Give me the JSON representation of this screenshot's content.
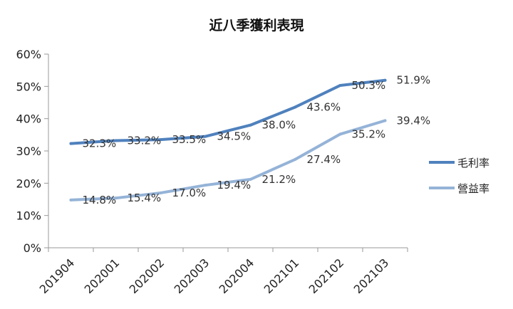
{
  "chart_data": {
    "type": "line",
    "title": "近八季獲利表現",
    "categories": [
      "201904",
      "202001",
      "202002",
      "202003",
      "202004",
      "202101",
      "202102",
      "202103"
    ],
    "series": [
      {
        "name": "毛利率",
        "color": "#4F81BD",
        "values": [
          32.3,
          33.2,
          33.5,
          34.5,
          38.0,
          43.6,
          50.3,
          51.9
        ],
        "labels": [
          "32.3%",
          "33.2%",
          "33.5%",
          "34.5%",
          "38.0%",
          "43.6%",
          "50.3%",
          "51.9%"
        ]
      },
      {
        "name": "營益率",
        "color": "#95B3D7",
        "values": [
          14.8,
          15.4,
          17.0,
          19.4,
          21.2,
          27.4,
          35.2,
          39.4
        ],
        "labels": [
          "14.8%",
          "15.4%",
          "17.0%",
          "19.4%",
          "21.2%",
          "27.4%",
          "35.2%",
          "39.4%"
        ]
      }
    ],
    "y_ticks": [
      "0%",
      "10%",
      "20%",
      "30%",
      "40%",
      "50%",
      "60%"
    ],
    "ylim": [
      0,
      60
    ],
    "xlabel": "",
    "ylabel": "",
    "grid": false,
    "legend_position": "right"
  }
}
